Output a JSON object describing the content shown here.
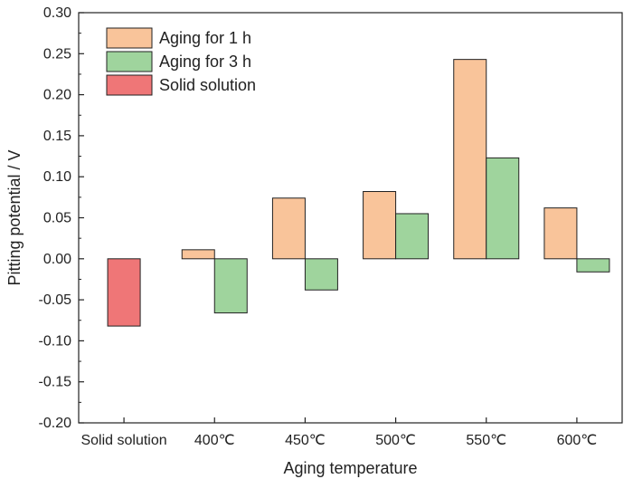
{
  "chart_data": {
    "type": "bar",
    "categories": [
      "Solid solution",
      "400℃",
      "450℃",
      "500℃",
      "550℃",
      "600℃"
    ],
    "series": [
      {
        "name": "Aging for 1 h",
        "color": "#F9C49A",
        "values": [
          null,
          0.011,
          0.074,
          0.082,
          0.243,
          0.062
        ]
      },
      {
        "name": "Aging for 3 h",
        "color": "#9FD49D",
        "values": [
          null,
          -0.066,
          -0.038,
          0.055,
          0.123,
          -0.016
        ]
      },
      {
        "name": "Solid solution",
        "color": "#EF7677",
        "values": [
          -0.082,
          null,
          null,
          null,
          null,
          null
        ]
      }
    ],
    "xlabel": "Aging temperature",
    "ylabel": "Pitting potential / V",
    "ylim": [
      -0.2,
      0.3
    ],
    "yticks": [
      "-0.20",
      "-0.15",
      "-0.10",
      "-0.05",
      "0.00",
      "0.05",
      "0.10",
      "0.15",
      "0.20",
      "0.25",
      "0.30"
    ],
    "grid": false,
    "legend_position": "top-left"
  }
}
